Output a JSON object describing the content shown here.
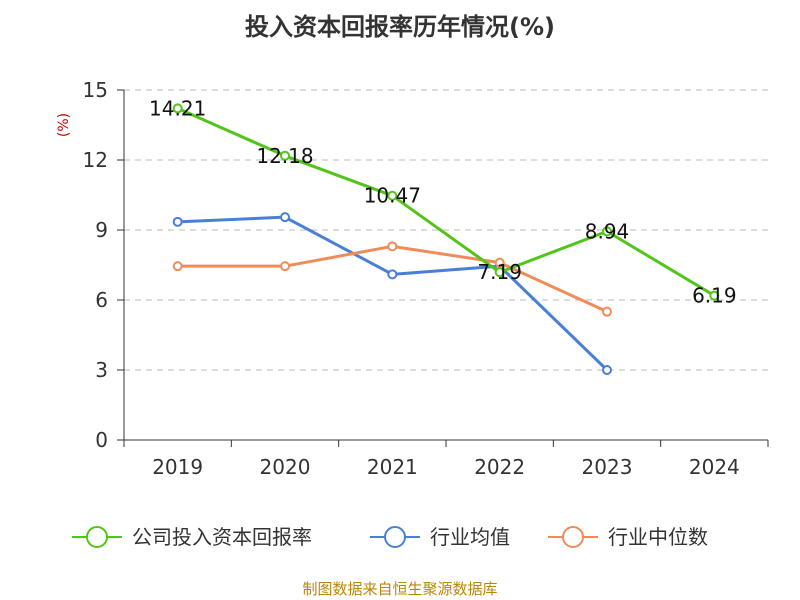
{
  "chart_data": {
    "type": "line",
    "title": "投入资本回报率历年情况(%)",
    "ylabel": "(%)",
    "xlabel": "",
    "categories": [
      "2019",
      "2020",
      "2021",
      "2022",
      "2023",
      "2024"
    ],
    "ylim": [
      0,
      15
    ],
    "yticks": [
      0,
      3,
      6,
      9,
      12,
      15
    ],
    "grid": true,
    "legend_position": "bottom",
    "series": [
      {
        "name": "公司投入资本回报率",
        "color": "#52c41a",
        "values": [
          14.21,
          12.18,
          10.47,
          7.19,
          8.94,
          6.19
        ],
        "labels": [
          "14.21",
          "12.18",
          "10.47",
          "7.19",
          "8.94",
          "6.19"
        ]
      },
      {
        "name": "行业均值",
        "color": "#4a7fd6",
        "values": [
          9.35,
          9.55,
          7.1,
          7.45,
          3.0,
          null
        ]
      },
      {
        "name": "行业中位数",
        "color": "#f08c5a",
        "values": [
          7.45,
          7.45,
          8.3,
          7.6,
          5.5,
          null
        ]
      }
    ]
  },
  "source_note": "制图数据来自恒生聚源数据库"
}
